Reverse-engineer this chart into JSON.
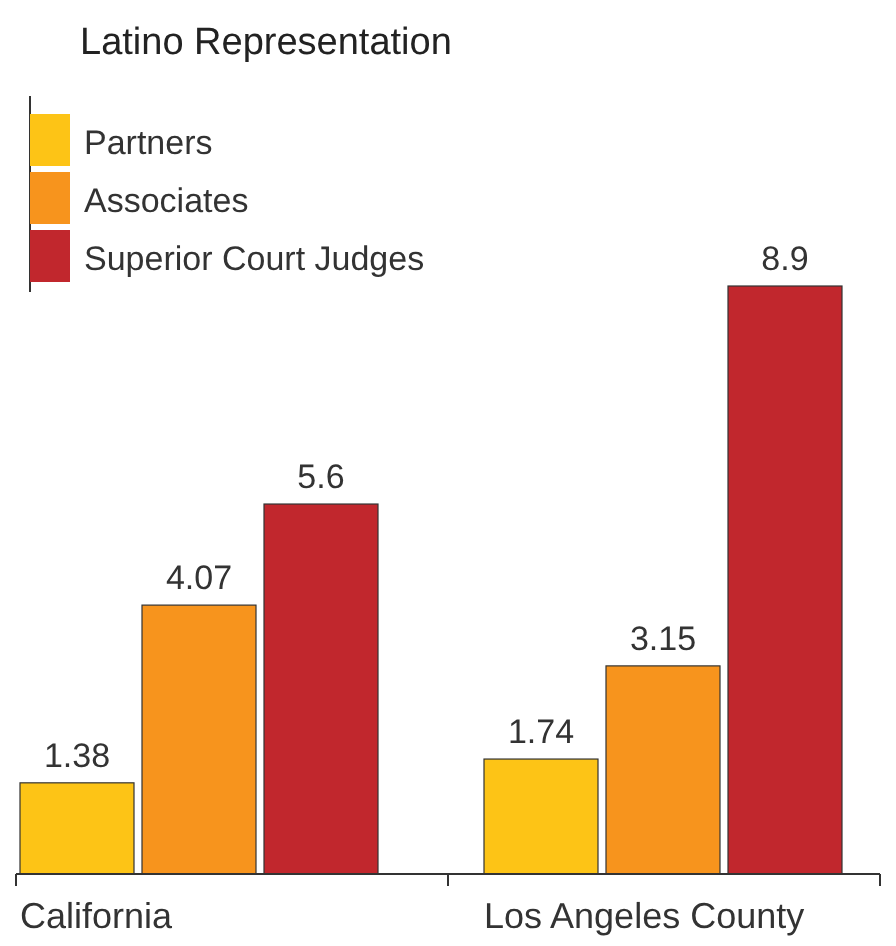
{
  "chart_data": {
    "type": "bar",
    "title": "Latino Representation",
    "categories": [
      "California",
      "Los Angeles County"
    ],
    "series": [
      {
        "name": "Partners",
        "color": "#fdc416",
        "values": [
          1.38,
          1.74
        ]
      },
      {
        "name": "Associates",
        "color": "#f7941d",
        "values": [
          4.07,
          3.15
        ]
      },
      {
        "name": "Superior Court Judges",
        "color": "#c1272d",
        "values": [
          5.6,
          8.9
        ]
      }
    ],
    "data_labels": true,
    "legend": "top left",
    "grid": false
  }
}
